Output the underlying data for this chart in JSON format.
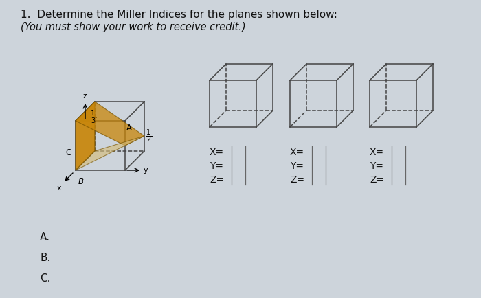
{
  "title_line1": "1.  Determine the Miller Indices for the planes shown below:",
  "title_line2": "(You must show your work to receive credit.)",
  "bg_color": "#cdd4db",
  "text_color": "#111111",
  "answer_labels": [
    "A.",
    "B.",
    "C."
  ],
  "cube_edge_color": "#444444",
  "plane_color_orange": "#c8860a",
  "plane_color_tan": "#d4bc7a",
  "plane_alpha_orange": 0.92,
  "plane_alpha_tan": 0.65,
  "fraction_label_13": "1\n3",
  "fraction_label_12": "1\n2"
}
